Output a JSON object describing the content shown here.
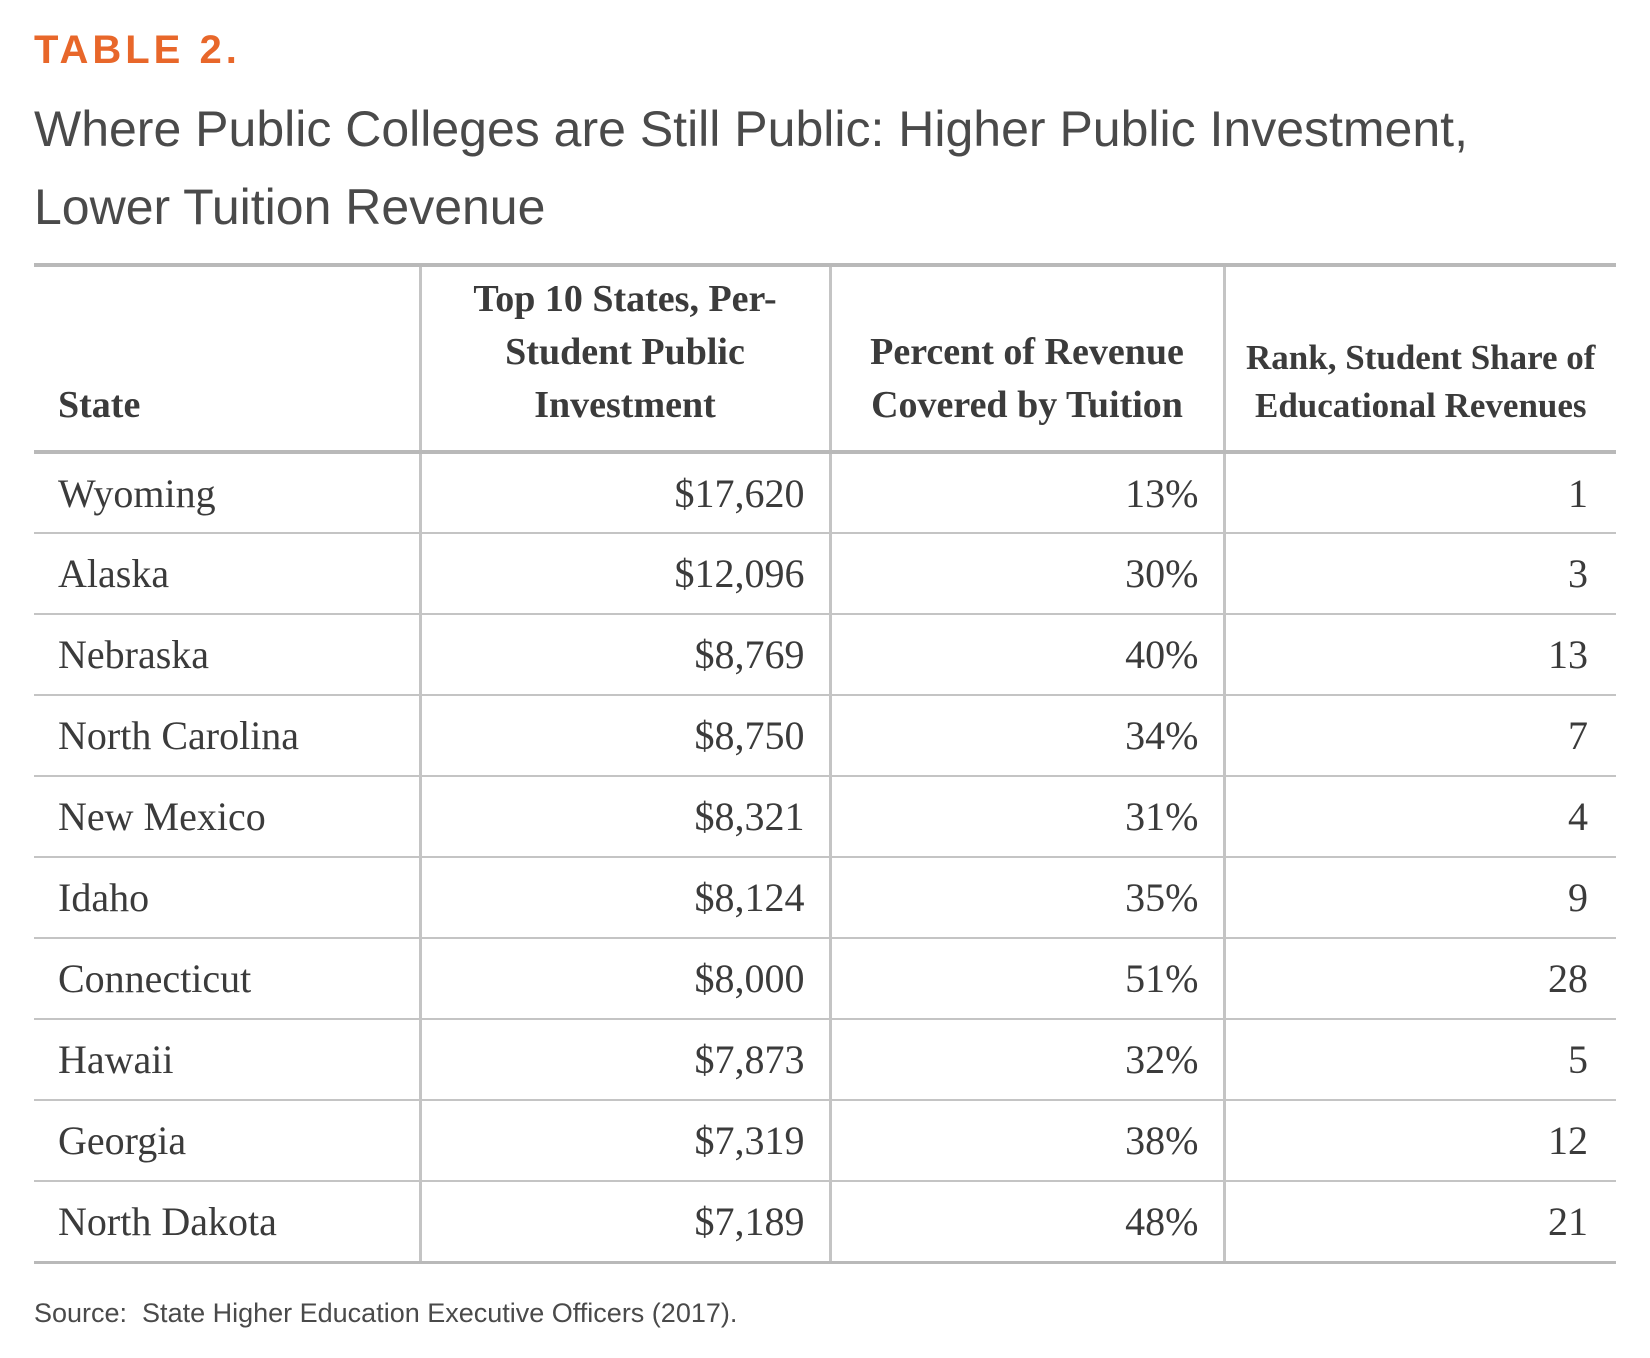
{
  "kicker": "TABLE 2.",
  "title": "Where Public Colleges are Still Public: Higher Public Investment, Lower Tuition Revenue",
  "table": {
    "headers": [
      "State",
      "Top 10 States, Per-Student Public Investment",
      "Percent of Revenue Covered by Tuition",
      "Rank, Student Share of Educational Revenues"
    ],
    "rows": [
      [
        "Wyoming",
        "$17,620",
        "13%",
        "1"
      ],
      [
        "Alaska",
        "$12,096",
        "30%",
        "3"
      ],
      [
        "Nebraska",
        "$8,769",
        "40%",
        "13"
      ],
      [
        "North Carolina",
        "$8,750",
        "34%",
        "7"
      ],
      [
        "New Mexico",
        "$8,321",
        "31%",
        "4"
      ],
      [
        "Idaho",
        "$8,124",
        "35%",
        "9"
      ],
      [
        "Connecticut",
        "$8,000",
        "51%",
        "28"
      ],
      [
        "Hawaii",
        "$7,873",
        "32%",
        "5"
      ],
      [
        "Georgia",
        "$7,319",
        "38%",
        "12"
      ],
      [
        "North Dakota",
        "$7,189",
        "48%",
        "21"
      ]
    ]
  },
  "source": "Source:  State Higher Education Executive Officers (2017).",
  "colors": {
    "accent": "#e8672a",
    "title_text": "#4a4a4a",
    "body_text": "#3b3b3b",
    "rule": "#b9b9b9"
  }
}
